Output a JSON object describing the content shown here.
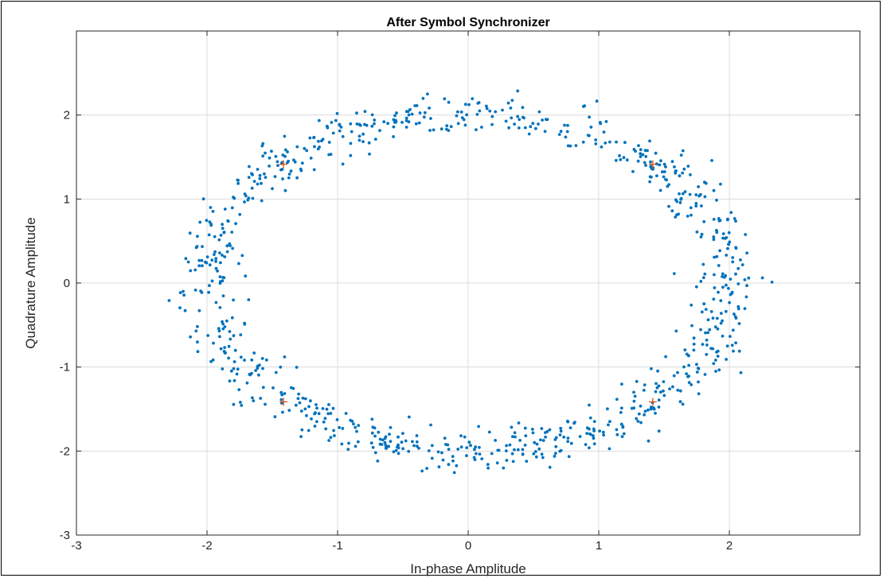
{
  "chart_data": {
    "type": "scatter",
    "title": "After Symbol Synchronizer",
    "xlabel": "In-phase Amplitude",
    "ylabel": "Quadrature Amplitude",
    "xlim": [
      -3,
      3
    ],
    "ylim": [
      -3,
      3
    ],
    "xticks": [
      -3,
      -2,
      -1,
      0,
      1,
      2
    ],
    "yticks": [
      -3,
      -2,
      -1,
      0,
      1,
      2
    ],
    "xtick_labels": [
      "-3",
      "-2",
      "-1",
      "0",
      "1",
      "2"
    ],
    "ytick_labels": [
      "-3",
      "-2",
      "-1",
      "0",
      "1",
      "2"
    ],
    "grid": true,
    "legend": "none",
    "series": [
      {
        "marker": "dot",
        "color": "#0072BD",
        "ring_radius": 2.0,
        "ring_spread": 0.12,
        "point_count": 900
      },
      {
        "marker": "plus",
        "color": "#D95319",
        "x": [
          -1.414,
          1.414,
          -1.414,
          1.414
        ],
        "y": [
          1.414,
          1.414,
          -1.414,
          -1.414
        ]
      }
    ]
  }
}
